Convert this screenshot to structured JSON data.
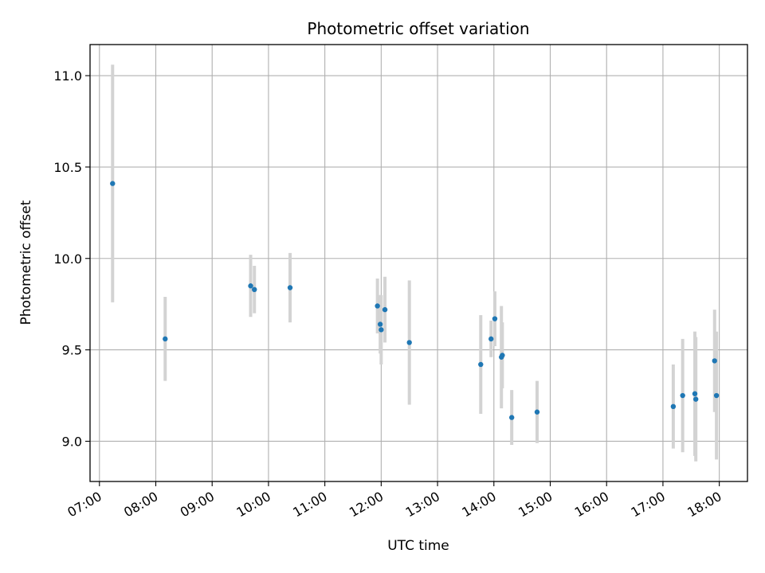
{
  "chart_data": {
    "type": "scatter",
    "title": "Photometric offset variation",
    "xlabel": "UTC time",
    "ylabel": "Photometric offset",
    "xlim": [
      "06:50",
      "18:30"
    ],
    "ylim": [
      8.78,
      11.17
    ],
    "x_ticks": [
      "07:00",
      "08:00",
      "09:00",
      "10:00",
      "11:00",
      "12:00",
      "13:00",
      "14:00",
      "15:00",
      "16:00",
      "17:00",
      "18:00"
    ],
    "y_ticks": [
      9.0,
      9.5,
      10.0,
      10.5,
      11.0
    ],
    "y_tick_labels": [
      "9.0",
      "9.5",
      "10.0",
      "10.5",
      "11.0"
    ],
    "grid": true,
    "point_color": "#1f77b4",
    "errorbar_color": "#d3d3d3",
    "points": [
      {
        "time": "07:14",
        "y": 10.41,
        "err": 0.65
      },
      {
        "time": "08:10",
        "y": 9.56,
        "err": 0.23
      },
      {
        "time": "09:41",
        "y": 9.85,
        "err": 0.17
      },
      {
        "time": "09:45",
        "y": 9.83,
        "err": 0.13
      },
      {
        "time": "10:23",
        "y": 9.84,
        "err": 0.19
      },
      {
        "time": "11:56",
        "y": 9.74,
        "err": 0.15
      },
      {
        "time": "11:59",
        "y": 9.64,
        "err": 0.16
      },
      {
        "time": "12:00",
        "y": 9.61,
        "err": 0.19
      },
      {
        "time": "12:04",
        "y": 9.72,
        "err": 0.18
      },
      {
        "time": "12:30",
        "y": 9.54,
        "err": 0.34
      },
      {
        "time": "13:46",
        "y": 9.42,
        "err": 0.27
      },
      {
        "time": "13:57",
        "y": 9.56,
        "err": 0.1
      },
      {
        "time": "14:01",
        "y": 9.67,
        "err": 0.15
      },
      {
        "time": "14:08",
        "y": 9.46,
        "err": 0.28
      },
      {
        "time": "14:09",
        "y": 9.47,
        "err": 0.18
      },
      {
        "time": "14:19",
        "y": 9.13,
        "err": 0.15
      },
      {
        "time": "14:46",
        "y": 9.16,
        "err": 0.17
      },
      {
        "time": "17:11",
        "y": 9.19,
        "err": 0.23
      },
      {
        "time": "17:21",
        "y": 9.25,
        "err": 0.31
      },
      {
        "time": "17:34",
        "y": 9.26,
        "err": 0.34
      },
      {
        "time": "17:35",
        "y": 9.23,
        "err": 0.34
      },
      {
        "time": "17:55",
        "y": 9.44,
        "err": 0.28
      },
      {
        "time": "17:57",
        "y": 9.25,
        "err": 0.35
      }
    ]
  }
}
